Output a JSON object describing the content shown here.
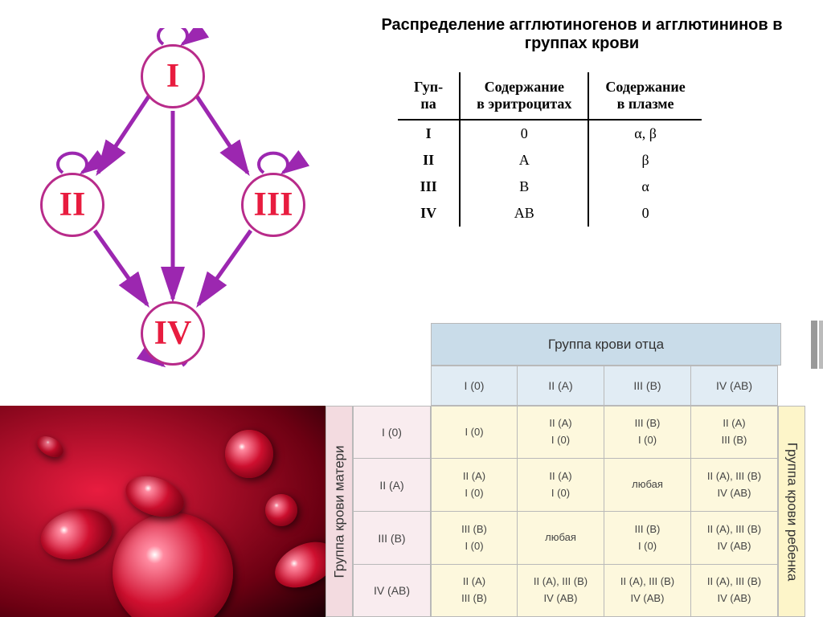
{
  "diagram": {
    "nodes": [
      {
        "id": "I",
        "label": "I"
      },
      {
        "id": "II",
        "label": "II"
      },
      {
        "id": "III",
        "label": "III"
      },
      {
        "id": "IV",
        "label": "IV"
      }
    ],
    "edges": [
      {
        "from": "I",
        "to": "I",
        "self": true
      },
      {
        "from": "II",
        "to": "II",
        "self": true
      },
      {
        "from": "III",
        "to": "III",
        "self": true
      },
      {
        "from": "IV",
        "to": "IV",
        "self": true
      },
      {
        "from": "I",
        "to": "II"
      },
      {
        "from": "I",
        "to": "III"
      },
      {
        "from": "I",
        "to": "IV"
      },
      {
        "from": "II",
        "to": "IV"
      },
      {
        "from": "III",
        "to": "IV"
      }
    ],
    "node_stroke": "#b82b8a",
    "node_text_color": "#e81c3f",
    "arrow_color": "#9c27b0",
    "node_fontsize": 42
  },
  "top_title": "Распределение агглютиногенов и агглютининов в группах крови",
  "table1": {
    "columns": [
      "Гуп-\nпа",
      "Содержание\nв эритроцитах",
      "Содержание\nв плазме"
    ],
    "rows": [
      [
        "I",
        "0",
        "α, β"
      ],
      [
        "II",
        "A",
        "β"
      ],
      [
        "III",
        "B",
        "α"
      ],
      [
        "IV",
        "AB",
        "0"
      ]
    ],
    "fontsize": 18,
    "border_color": "#000000"
  },
  "table2": {
    "father_header": "Группа крови отца",
    "mother_header": "Группа крови матери",
    "child_header": "Группа крови ребенка",
    "father_cols": [
      "I (0)",
      "II (A)",
      "III (B)",
      "IV (AB)"
    ],
    "mother_rows": [
      "I (0)",
      "II (A)",
      "III (B)",
      "IV (AB)"
    ],
    "cells": [
      [
        "I (0)",
        "II (A)\nI (0)",
        "III (B)\nI (0)",
        "II (A)\nIII (B)"
      ],
      [
        "II (A)\nI (0)",
        "II (A)\nI (0)",
        "любая",
        "II (A), III (B)\nIV (AB)"
      ],
      [
        "III (B)\nI (0)",
        "любая",
        "III (B)\nI (0)",
        "II (A), III (B)\nIV (AB)"
      ],
      [
        "II (A)\nIII (B)",
        "II (A), III (B)\nIV (AB)",
        "II (A), III (B)\nIV (AB)",
        "II (A), III (B)\nIV (AB)"
      ]
    ],
    "father_bg": "#c9dce9",
    "father_col_bg": "#e1ecf4",
    "mother_bg": "#f3dbe0",
    "mother_row_bg": "#f9ecef",
    "cell_bg": "#fdf8dd",
    "child_bg": "#fdf5c9",
    "border_color": "#b9b9b9",
    "fontsize": 14
  },
  "blood_image": {
    "bg_gradient": [
      "#e81c3f",
      "#6b0012",
      "#1a0005"
    ],
    "cell_colors": [
      "#ffffff",
      "#ff8aa0",
      "#d01030",
      "#600010"
    ]
  }
}
